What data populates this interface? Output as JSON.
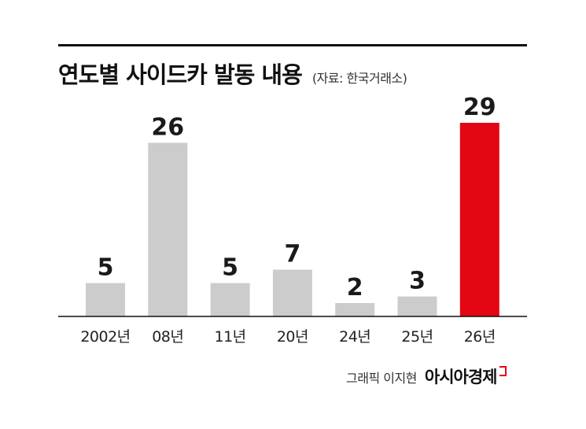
{
  "chart_data": {
    "type": "bar",
    "title": "연도별 사이드카 발동 내용",
    "source": "(자료: 한국거래소)",
    "categories": [
      "2002년",
      "08년",
      "11년",
      "20년",
      "24년",
      "25년",
      "26년"
    ],
    "values": [
      5,
      26,
      5,
      7,
      2,
      3,
      29
    ],
    "highlight_index": 6,
    "bar_color": "#cccccc",
    "highlight_color": "#e30613",
    "ylim": [
      0,
      29
    ],
    "grid": false,
    "legend": "none"
  },
  "credit": {
    "text": "그래픽 이지현",
    "brand": "아시아경제"
  }
}
